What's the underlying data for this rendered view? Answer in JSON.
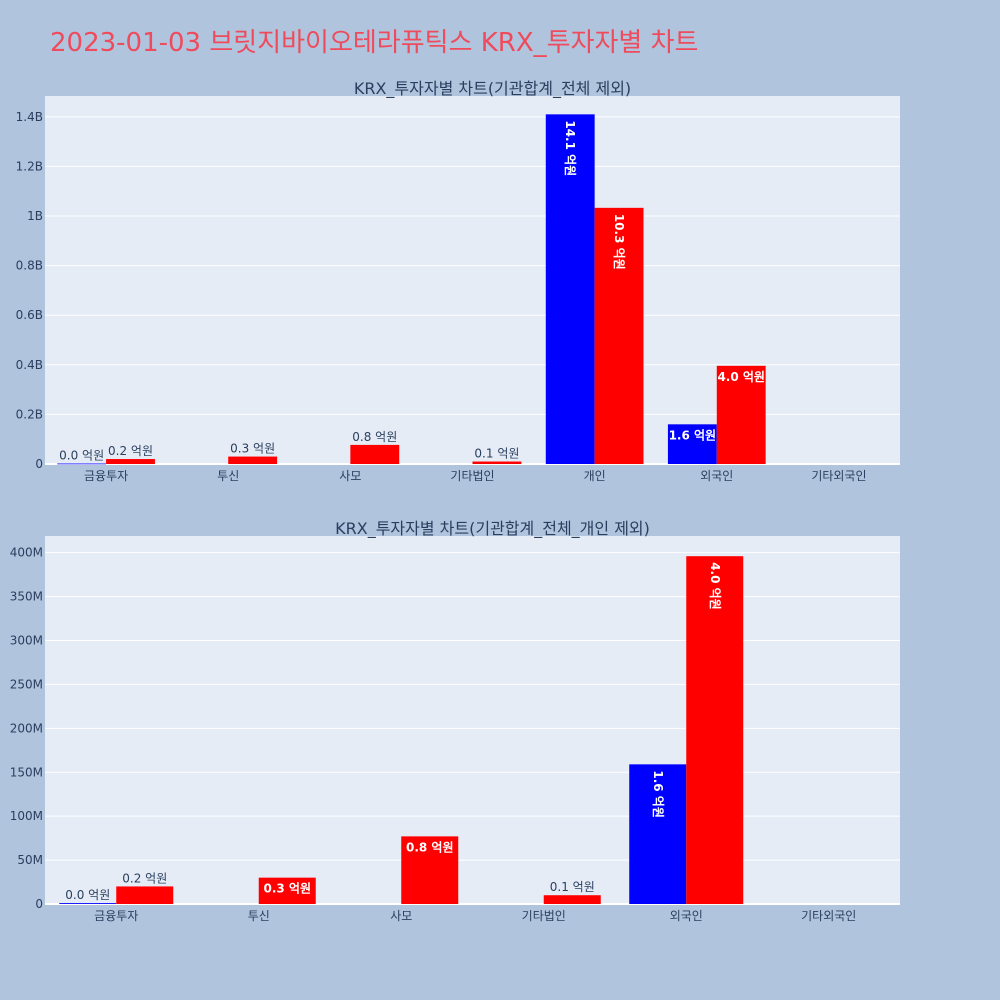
{
  "page": {
    "title": "2023-01-03 브릿지바이오테라퓨틱스 KRX_투자자별 차트"
  },
  "colors": {
    "background": "#b0c4de",
    "plot_bg": "#e5ecf6",
    "buy": "#0000ff",
    "sell": "#ff0000",
    "title": "#ef4b5c"
  },
  "chart_data": [
    {
      "type": "bar",
      "title": "KRX_투자자별 차트(기관합계_전체 제외)",
      "categories": [
        "금융투자",
        "투신",
        "사모",
        "기타법인",
        "개인",
        "외국인",
        "기타외국인"
      ],
      "series": [
        {
          "values": [
            2000000,
            0,
            0,
            0,
            1410000000,
            160000000,
            0
          ],
          "labels": [
            "0.0 억원",
            "",
            "",
            "",
            "14.1 억원",
            "1.6 억원",
            ""
          ]
        },
        {
          "values": [
            20000000,
            30000000,
            77000000,
            10000000,
            1033000000,
            396000000,
            0
          ],
          "labels": [
            "0.2 억원",
            "0.3 억원",
            "0.8 억원",
            "0.1 억원",
            "10.3 억원",
            "4.0 억원",
            ""
          ]
        }
      ],
      "yticks": [
        0,
        200000000,
        400000000,
        600000000,
        800000000,
        1000000000,
        1200000000,
        1400000000
      ],
      "ytick_labels": [
        "0",
        "0.2B",
        "0.4B",
        "0.6B",
        "0.8B",
        "1B",
        "1.2B",
        "1.4B"
      ],
      "ylim": [
        0,
        1484000000
      ],
      "grid": true
    },
    {
      "type": "bar",
      "title": "KRX_투자자별 차트(기관합계_전체_개인 제외)",
      "categories": [
        "금융투자",
        "투신",
        "사모",
        "기타법인",
        "외국인",
        "기타외국인"
      ],
      "series": [
        {
          "values": [
            1000000,
            0,
            0,
            0,
            159000000,
            0
          ],
          "labels": [
            "0.0 억원",
            "",
            "",
            "",
            "1.6 억원",
            ""
          ]
        },
        {
          "values": [
            20000000,
            30000000,
            77000000,
            10000000,
            396000000,
            0
          ],
          "labels": [
            "0.2 억원",
            "0.3 억원",
            "0.8 억원",
            "0.1 억원",
            "4.0 억원",
            ""
          ]
        }
      ],
      "yticks": [
        0,
        50000000,
        100000000,
        150000000,
        200000000,
        250000000,
        300000000,
        350000000,
        400000000
      ],
      "ytick_labels": [
        "0",
        "50M",
        "100M",
        "150M",
        "200M",
        "250M",
        "300M",
        "350M",
        "400M"
      ],
      "ylim": [
        0,
        419000000
      ],
      "grid": true
    }
  ]
}
